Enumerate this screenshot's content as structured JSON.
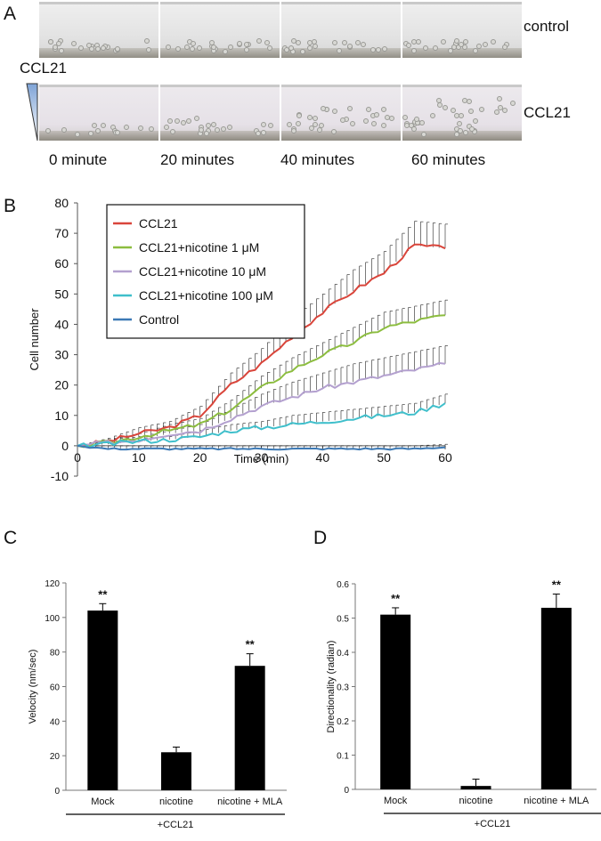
{
  "panel_a": {
    "label": "A",
    "row_labels": [
      "control",
      "CCL21"
    ],
    "gradient_label": "CCL21",
    "time_labels": [
      "0 minute",
      "20 minutes",
      "40 minutes",
      "60 minutes"
    ]
  },
  "panel_b": {
    "label": "B"
  },
  "panel_c": {
    "label": "C"
  },
  "panel_d": {
    "label": "D"
  },
  "colors": {
    "ccl21": "#d9453b",
    "nic1": "#8cbd3f",
    "nic10": "#b3a0cf",
    "nic100": "#3fbfcb",
    "control": "#3c79b5",
    "bar": "#000000"
  },
  "chart_data": [
    {
      "id": "B",
      "type": "line",
      "title": "",
      "xlabel": "Time (min)",
      "ylabel": "Cell number",
      "xlim": [
        0,
        60
      ],
      "ylim": [
        -10,
        80
      ],
      "xticks": [
        0,
        10,
        20,
        30,
        40,
        50,
        60
      ],
      "yticks": [
        -10,
        0,
        10,
        20,
        30,
        40,
        50,
        60,
        70,
        80
      ],
      "legend_position": "top-left",
      "series": [
        {
          "name": "CCL21",
          "color": "#d9453b",
          "x": [
            0,
            5,
            10,
            15,
            20,
            25,
            30,
            35,
            40,
            45,
            50,
            55,
            60
          ],
          "y": [
            0,
            1.5,
            4,
            6,
            10,
            20,
            27,
            36,
            44,
            51,
            57,
            66,
            65
          ],
          "err": [
            0,
            1,
            2,
            2,
            3,
            4,
            5,
            6,
            6,
            7,
            7,
            8,
            8
          ]
        },
        {
          "name": "CCL21+nicotine 1 μM",
          "color": "#8cbd3f",
          "x": [
            0,
            5,
            10,
            15,
            20,
            25,
            30,
            35,
            40,
            45,
            50,
            55,
            60
          ],
          "y": [
            0,
            1,
            3,
            5,
            7,
            12,
            19,
            25,
            30,
            34,
            39,
            41,
            43
          ],
          "err": [
            0,
            1,
            1,
            2,
            2,
            3,
            4,
            4,
            4,
            5,
            5,
            5,
            5
          ]
        },
        {
          "name": "CCL21+nicotine 10 μM",
          "color": "#b3a0cf",
          "x": [
            0,
            5,
            10,
            15,
            20,
            25,
            30,
            35,
            40,
            45,
            50,
            55,
            60
          ],
          "y": [
            0,
            1,
            2,
            4,
            5,
            9,
            13,
            16,
            19,
            21,
            23,
            25,
            27
          ],
          "err": [
            0,
            1,
            1,
            1,
            2,
            3,
            4,
            5,
            5,
            6,
            6,
            6,
            6
          ]
        },
        {
          "name": "CCL21+nicotine 100 μM",
          "color": "#3fbfcb",
          "x": [
            0,
            5,
            10,
            15,
            20,
            25,
            30,
            35,
            40,
            45,
            50,
            55,
            60
          ],
          "y": [
            0,
            0.5,
            1.5,
            2,
            3,
            5,
            6,
            7,
            8,
            9,
            10,
            11,
            14
          ],
          "err": [
            0,
            1,
            1,
            1,
            2,
            2,
            2,
            3,
            3,
            3,
            3,
            3,
            3
          ]
        },
        {
          "name": "Control",
          "color": "#3c79b5",
          "x": [
            0,
            5,
            10,
            15,
            20,
            25,
            30,
            35,
            40,
            45,
            50,
            55,
            60
          ],
          "y": [
            0,
            -1,
            -1,
            -1,
            -1,
            -1,
            -1,
            -1,
            -1,
            -1,
            -1,
            -1,
            -0.5
          ],
          "err": [
            0,
            1,
            1,
            1,
            1,
            1,
            1,
            1,
            1,
            1,
            1,
            1,
            1
          ]
        }
      ]
    },
    {
      "id": "C",
      "type": "bar",
      "title": "",
      "ylabel": "Velocity (nm/sec)",
      "categories": [
        "Mock",
        "nicotine",
        "nicotine + MLA"
      ],
      "values": [
        104,
        22,
        72
      ],
      "errors": [
        4,
        3,
        7
      ],
      "significance": [
        "**",
        "",
        "**"
      ],
      "group_label": "+CCL21",
      "ylim": [
        0,
        120
      ],
      "yticks": [
        0,
        20,
        40,
        60,
        80,
        100,
        120
      ]
    },
    {
      "id": "D",
      "type": "bar",
      "title": "",
      "ylabel": "Directionality (radian)",
      "categories": [
        "Mock",
        "nicotine",
        "nicotine + MLA"
      ],
      "values": [
        0.51,
        0.01,
        0.53
      ],
      "errors": [
        0.02,
        0.02,
        0.04
      ],
      "significance": [
        "**",
        "",
        "**"
      ],
      "group_label": "+CCL21",
      "ylim": [
        0,
        0.6
      ],
      "yticks": [
        0,
        0.1,
        0.2,
        0.3,
        0.4,
        0.5,
        0.6
      ]
    }
  ]
}
